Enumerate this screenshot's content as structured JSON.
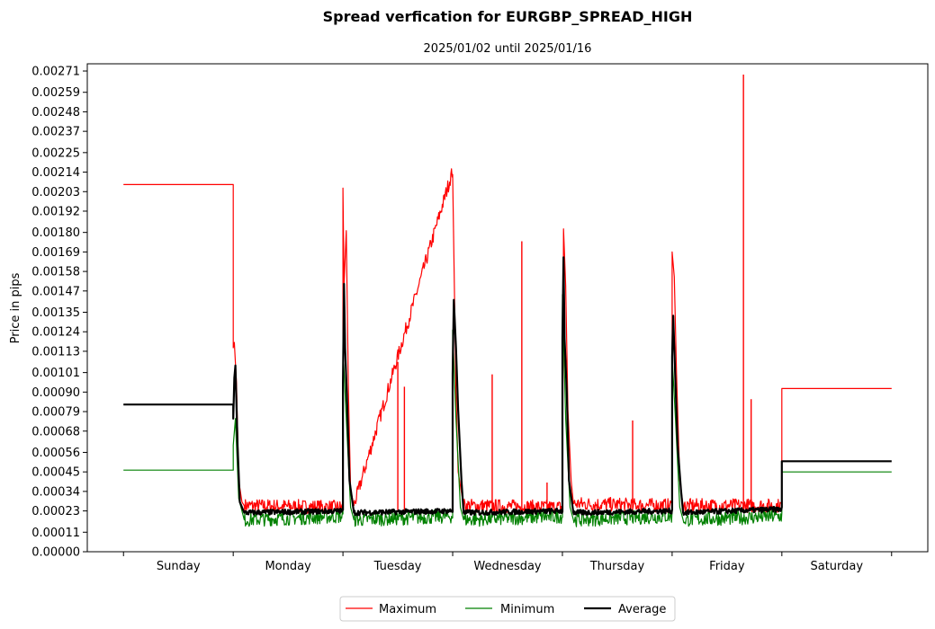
{
  "chart_data": {
    "type": "line",
    "title": "Spread verfication for EURGBP_SPREAD_HIGH",
    "subtitle": "2025/01/02 until 2025/01/16",
    "xlabel": "",
    "ylabel": "Price in pips",
    "ylim": [
      0,
      0.0027
    ],
    "xlim": [
      -0.33,
      7.33
    ],
    "yticks": [
      "0.00000",
      "0.00011",
      "0.00023",
      "0.00034",
      "0.00045",
      "0.00056",
      "0.00068",
      "0.00079",
      "0.00090",
      "0.00101",
      "0.00113",
      "0.00124",
      "0.00135",
      "0.00147",
      "0.00158",
      "0.00169",
      "0.00180",
      "0.00192",
      "0.00203",
      "0.00214",
      "0.00225",
      "0.00237",
      "0.00248",
      "0.00259",
      "0.00271"
    ],
    "categories": [
      "Sunday",
      "Monday",
      "Tuesday",
      "Wednesday",
      "Thursday",
      "Friday",
      "Saturday"
    ],
    "grid": false,
    "legend_position": "bottom-center",
    "series": [
      {
        "name": "Maximum",
        "color": "#ff0000",
        "width": 1.2,
        "x": [
          0,
          1,
          1,
          1.01,
          1.03,
          1.05,
          1.08,
          1.1,
          2,
          2,
          2.01,
          2.03,
          2.05,
          2.07,
          2.1,
          3,
          3.03,
          3.05,
          3.1,
          4,
          4.01,
          4.03,
          4.05,
          4.08,
          4.1,
          5,
          5,
          5.02,
          5.04,
          5.07,
          5.1,
          6,
          6,
          7
        ],
        "y": [
          0.00207,
          0.00207,
          0.00115,
          0.00118,
          0.00095,
          0.0004,
          0.00028,
          0.00026,
          0.00025,
          0.00205,
          0.0015,
          0.00181,
          0.0009,
          0.00035,
          0.00026,
          0.00215,
          0.0009,
          0.00045,
          0.00026,
          0.00025,
          0.00182,
          0.0015,
          0.0008,
          0.0004,
          0.00027,
          0.00026,
          0.00169,
          0.00155,
          0.001,
          0.0004,
          0.00026,
          0.00026,
          0.00092,
          0.00092
        ]
      },
      {
        "name": "Minimum",
        "color": "#008000",
        "width": 1.2,
        "x": [
          0,
          1,
          1,
          1.02,
          1.05,
          1.1,
          2,
          2,
          2.03,
          2.07,
          2.1,
          3,
          3,
          3.03,
          3.07,
          3.1,
          4,
          4,
          4.03,
          4.07,
          4.1,
          5,
          5,
          5.03,
          5.07,
          5.1,
          6,
          6,
          7
        ],
        "y": [
          0.00046,
          0.00046,
          0.0006,
          0.00075,
          0.0003,
          0.00018,
          0.0002,
          0.00115,
          0.00075,
          0.00025,
          0.00018,
          0.0002,
          0.00125,
          0.00075,
          0.00025,
          0.00018,
          0.0002,
          0.00145,
          0.00075,
          0.00025,
          0.00018,
          0.0002,
          0.0011,
          0.00075,
          0.00025,
          0.00018,
          0.0002,
          0.00045,
          0.00045
        ]
      },
      {
        "name": "Average",
        "color": "#000000",
        "width": 2.2,
        "x": [
          0,
          1,
          1,
          1.01,
          1.02,
          1.04,
          1.06,
          1.1,
          2,
          2,
          2.01,
          2.02,
          2.04,
          2.06,
          2.1,
          3,
          3,
          3.01,
          3.03,
          3.05,
          3.08,
          3.1,
          4,
          4,
          4.01,
          4.02,
          4.04,
          4.06,
          4.1,
          5,
          5,
          5.01,
          5.03,
          5.05,
          5.08,
          5.1,
          6,
          6,
          7
        ],
        "y": [
          0.00083,
          0.00083,
          0.00075,
          0.00098,
          0.00105,
          0.0006,
          0.00028,
          0.00022,
          0.00023,
          0.00095,
          0.00151,
          0.00115,
          0.0008,
          0.0004,
          0.00022,
          0.00023,
          0.001,
          0.00142,
          0.00115,
          0.0008,
          0.0004,
          0.00022,
          0.00023,
          0.0012,
          0.00166,
          0.0012,
          0.0009,
          0.0004,
          0.00022,
          0.00023,
          0.0011,
          0.00133,
          0.00095,
          0.0006,
          0.00035,
          0.00022,
          0.00024,
          0.00051,
          0.00051
        ]
      }
    ],
    "spikes": [
      {
        "series": "Maximum",
        "x": 2.5,
        "y": 0.00107
      },
      {
        "series": "Maximum",
        "x": 2.56,
        "y": 0.00093
      },
      {
        "series": "Maximum",
        "x": 3.36,
        "y": 0.001
      },
      {
        "series": "Maximum",
        "x": 3.63,
        "y": 0.00175
      },
      {
        "series": "Maximum",
        "x": 3.86,
        "y": 0.00039
      },
      {
        "series": "Maximum",
        "x": 4.64,
        "y": 0.00074
      },
      {
        "series": "Maximum",
        "x": 5.65,
        "y": 0.00269
      },
      {
        "series": "Maximum",
        "x": 5.72,
        "y": 0.00086
      }
    ]
  }
}
